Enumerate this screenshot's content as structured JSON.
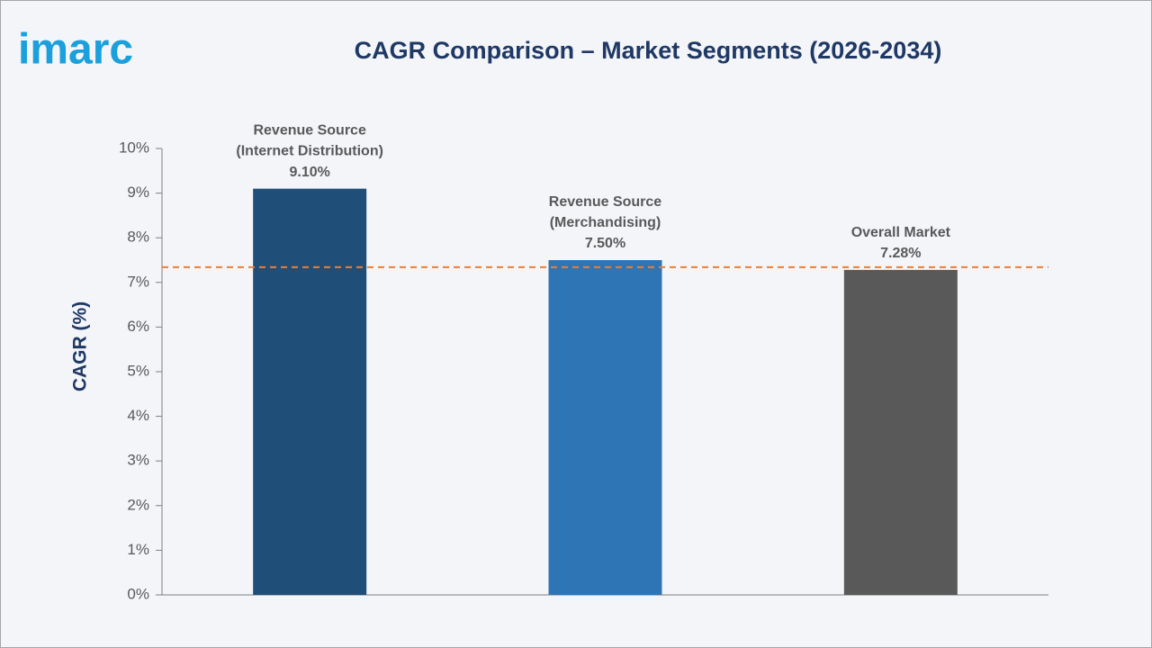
{
  "logo": "imarc",
  "chart_data": {
    "type": "bar",
    "title": "CAGR Comparison – Market Segments (2026-2034)",
    "y_label": "CAGR (%)",
    "categories": [
      "Revenue Source\n(Internet Distribution)",
      "Revenue Source\n(Merchandising)",
      "Overall Market"
    ],
    "values": [
      9.1,
      7.5,
      7.28
    ],
    "value_labels": [
      "9.10%",
      "7.50%",
      "7.28%"
    ],
    "colors": [
      "#1f4e79",
      "#2e75b6",
      "#595959"
    ],
    "ylim": [
      0,
      10
    ],
    "yticks": [
      {
        "value": 0,
        "label": "0%"
      },
      {
        "value": 1,
        "label": "1%"
      },
      {
        "value": 2,
        "label": "2%"
      },
      {
        "value": 3,
        "label": "3%"
      },
      {
        "value": 4,
        "label": "4%"
      },
      {
        "value": 5,
        "label": "5%"
      },
      {
        "value": 6,
        "label": "6%"
      },
      {
        "value": 7,
        "label": "7%"
      },
      {
        "value": 8,
        "label": "8%"
      },
      {
        "value": 9,
        "label": "9%"
      },
      {
        "value": 10,
        "label": "10%"
      }
    ],
    "reference_line": {
      "value": 7.34,
      "color": "#ed7d31"
    },
    "grid": false
  }
}
